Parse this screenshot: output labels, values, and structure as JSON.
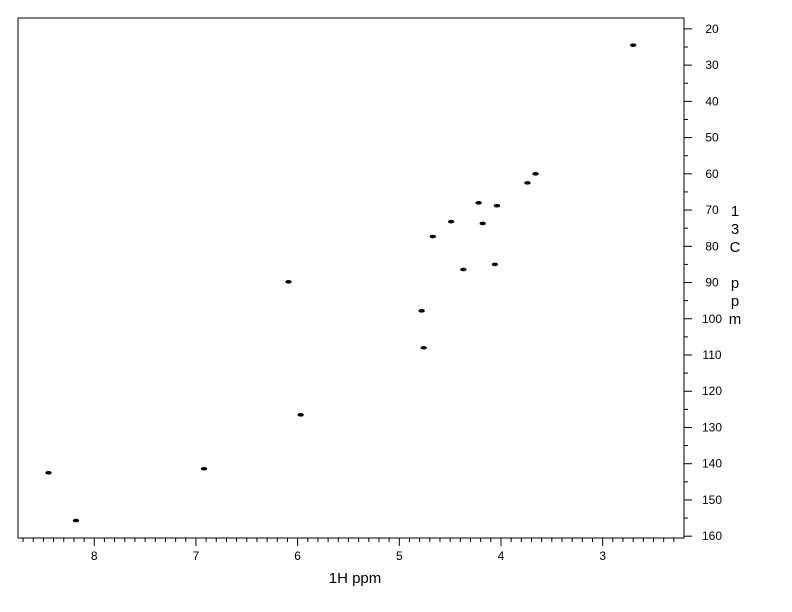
{
  "chart_data": {
    "type": "scatter",
    "title": "",
    "xlabel": "1H ppm",
    "ylabel": "13C ppm",
    "x_reversed": true,
    "y_axis_side": "right",
    "y_increases_downward": true,
    "xlim": [
      8.75,
      2.2
    ],
    "ylim": [
      17,
      160.5
    ],
    "x_ticks": [
      "8",
      "7",
      "6",
      "5",
      "4",
      "3"
    ],
    "y_ticks": [
      "20",
      "30",
      "40",
      "50",
      "60",
      "70",
      "80",
      "90",
      "100",
      "110",
      "120",
      "130",
      "140",
      "150",
      "160"
    ],
    "grid": false,
    "marker_color": "#000000",
    "points": [
      {
        "x": 2.7,
        "y": 24.5
      },
      {
        "x": 3.66,
        "y": 60.0
      },
      {
        "x": 3.74,
        "y": 62.5
      },
      {
        "x": 4.22,
        "y": 68.0
      },
      {
        "x": 4.04,
        "y": 68.8
      },
      {
        "x": 4.49,
        "y": 73.2
      },
      {
        "x": 4.18,
        "y": 73.7
      },
      {
        "x": 4.67,
        "y": 77.3
      },
      {
        "x": 4.06,
        "y": 85.0
      },
      {
        "x": 4.37,
        "y": 86.4
      },
      {
        "x": 6.09,
        "y": 89.8
      },
      {
        "x": 4.78,
        "y": 97.8
      },
      {
        "x": 4.76,
        "y": 108.0
      },
      {
        "x": 5.97,
        "y": 126.5
      },
      {
        "x": 6.92,
        "y": 141.4
      },
      {
        "x": 8.45,
        "y": 142.5
      },
      {
        "x": 8.18,
        "y": 155.7
      }
    ]
  }
}
